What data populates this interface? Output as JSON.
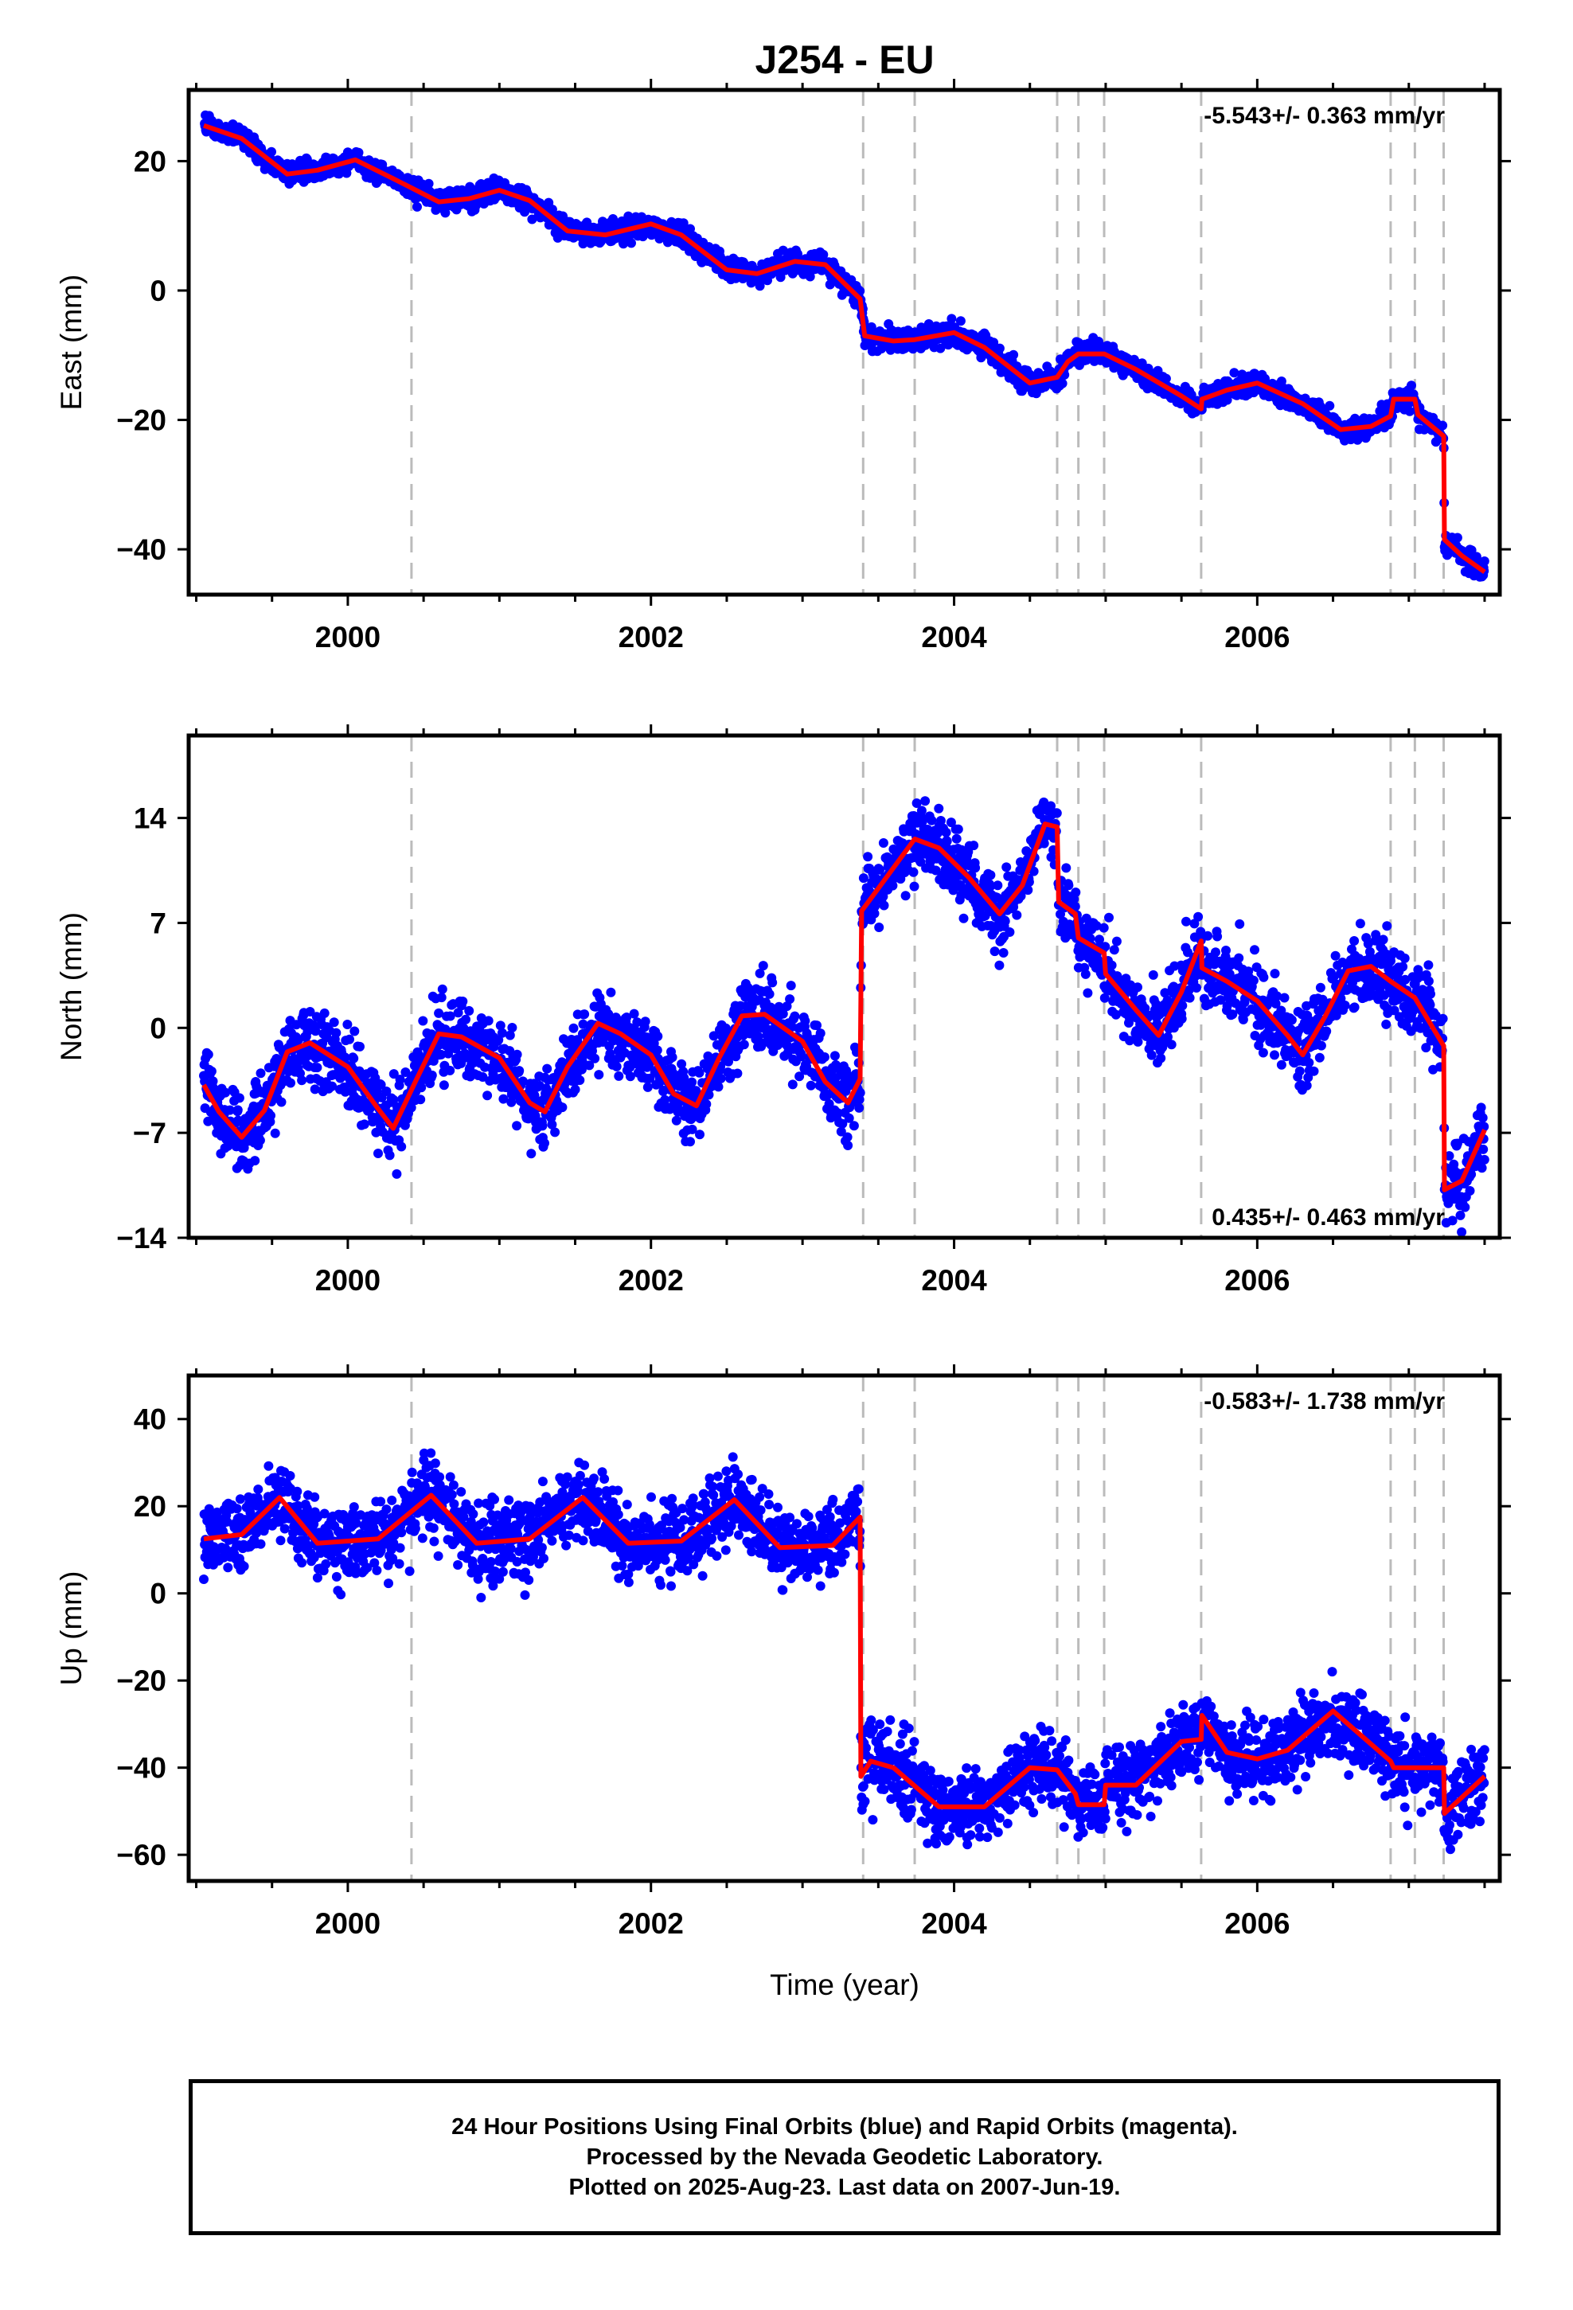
{
  "chart_data": {
    "type": "scatter",
    "title": "J254 - EU",
    "xlabel": "Time (year)",
    "xlim": [
      1998.95,
      2007.6
    ],
    "x_ticks": [
      2000,
      2002,
      2004,
      2006
    ],
    "x_tick_labels": [
      "2000",
      "2002",
      "2004",
      "2006"
    ],
    "event_lines": [
      2000.42,
      2003.4,
      2003.74,
      2004.68,
      2004.82,
      2004.99,
      2005.63,
      2006.88,
      2007.04,
      2007.23
    ],
    "data_colors": {
      "points": "#0000ff",
      "model": "#ff0000",
      "event_lines": "#bbbbbb"
    },
    "panels": [
      {
        "ylabel": "East (mm)",
        "ylim": [
          -47,
          31
        ],
        "y_ticks": [
          20,
          0,
          -20,
          -40
        ],
        "y_tick_labels": [
          "20",
          "0",
          "−20",
          "−40"
        ],
        "rate_label": "-5.543+/- 0.363 mm/yr",
        "rate_position": "top-right",
        "model": [
          [
            1999.05,
            25.5
          ],
          [
            1999.3,
            23.5
          ],
          [
            1999.6,
            18.0
          ],
          [
            1999.8,
            18.6
          ],
          [
            2000.05,
            20.2
          ],
          [
            2000.3,
            17.3
          ],
          [
            2000.6,
            13.7
          ],
          [
            2000.8,
            14.2
          ],
          [
            2001.0,
            15.5
          ],
          [
            2001.2,
            13.9
          ],
          [
            2001.45,
            9.2
          ],
          [
            2001.7,
            8.6
          ],
          [
            2002.0,
            10.3
          ],
          [
            2002.2,
            8.6
          ],
          [
            2002.5,
            3.2
          ],
          [
            2002.7,
            2.6
          ],
          [
            2002.95,
            4.5
          ],
          [
            2003.15,
            4.0
          ],
          [
            2003.38,
            -1.3
          ],
          [
            2003.41,
            -7.0
          ],
          [
            2003.6,
            -7.8
          ],
          [
            2003.74,
            -7.6
          ],
          [
            2004.0,
            -6.5
          ],
          [
            2004.2,
            -8.8
          ],
          [
            2004.5,
            -14.3
          ],
          [
            2004.68,
            -13.4
          ],
          [
            2004.75,
            -11.0
          ],
          [
            2004.82,
            -9.8
          ],
          [
            2004.99,
            -9.8
          ],
          [
            2005.2,
            -12.2
          ],
          [
            2005.5,
            -16.3
          ],
          [
            2005.63,
            -18.3
          ],
          [
            2005.635,
            -16.8
          ],
          [
            2005.8,
            -15.4
          ],
          [
            2006.0,
            -14.3
          ],
          [
            2006.3,
            -17.5
          ],
          [
            2006.55,
            -21.5
          ],
          [
            2006.75,
            -21.0
          ],
          [
            2006.88,
            -19.4
          ],
          [
            2006.9,
            -16.8
          ],
          [
            2007.04,
            -16.8
          ],
          [
            2007.06,
            -19.2
          ],
          [
            2007.23,
            -22.5
          ],
          [
            2007.235,
            -38.5
          ],
          [
            2007.35,
            -41.0
          ],
          [
            2007.5,
            -43.5
          ]
        ],
        "noise": 1.2
      },
      {
        "ylabel": "North (mm)",
        "ylim": [
          -14,
          19.5
        ],
        "y_ticks": [
          14,
          7,
          0,
          -7,
          -14
        ],
        "y_tick_labels": [
          "14",
          "7",
          "0",
          "−7",
          "−14"
        ],
        "rate_label": "0.435+/- 0.463 mm/yr",
        "rate_position": "bottom-right",
        "model": [
          [
            1999.05,
            -3.8
          ],
          [
            1999.15,
            -5.6
          ],
          [
            1999.3,
            -7.3
          ],
          [
            1999.45,
            -5.5
          ],
          [
            1999.6,
            -1.6
          ],
          [
            1999.75,
            -1.0
          ],
          [
            2000.0,
            -2.6
          ],
          [
            2000.2,
            -5.4
          ],
          [
            2000.3,
            -6.7
          ],
          [
            2000.45,
            -3.5
          ],
          [
            2000.6,
            -0.4
          ],
          [
            2000.75,
            -0.6
          ],
          [
            2001.0,
            -2.0
          ],
          [
            2001.2,
            -5.0
          ],
          [
            2001.3,
            -5.6
          ],
          [
            2001.45,
            -2.6
          ],
          [
            2001.65,
            0.3
          ],
          [
            2001.8,
            -0.4
          ],
          [
            2002.0,
            -1.8
          ],
          [
            2002.15,
            -4.4
          ],
          [
            2002.3,
            -5.2
          ],
          [
            2002.45,
            -2.0
          ],
          [
            2002.6,
            0.8
          ],
          [
            2002.75,
            0.9
          ],
          [
            2003.0,
            -0.9
          ],
          [
            2003.15,
            -3.6
          ],
          [
            2003.3,
            -5.0
          ],
          [
            2003.38,
            -3.4
          ],
          [
            2003.39,
            7.8
          ],
          [
            2003.5,
            9.3
          ],
          [
            2003.74,
            12.6
          ],
          [
            2003.9,
            12.0
          ],
          [
            2004.1,
            10.0
          ],
          [
            2004.3,
            7.6
          ],
          [
            2004.45,
            9.5
          ],
          [
            2004.6,
            13.6
          ],
          [
            2004.68,
            13.4
          ],
          [
            2004.69,
            8.4
          ],
          [
            2004.8,
            7.6
          ],
          [
            2004.82,
            6.0
          ],
          [
            2004.99,
            5.0
          ],
          [
            2005.0,
            3.6
          ],
          [
            2005.2,
            1.2
          ],
          [
            2005.35,
            -0.5
          ],
          [
            2005.5,
            2.4
          ],
          [
            2005.63,
            5.8
          ],
          [
            2005.635,
            4.0
          ],
          [
            2005.8,
            3.1
          ],
          [
            2006.0,
            1.8
          ],
          [
            2006.2,
            -0.5
          ],
          [
            2006.3,
            -1.8
          ],
          [
            2006.45,
            0.8
          ],
          [
            2006.6,
            3.8
          ],
          [
            2006.75,
            4.1
          ],
          [
            2006.88,
            3.1
          ],
          [
            2007.04,
            2.0
          ],
          [
            2007.23,
            -1.2
          ],
          [
            2007.235,
            -10.8
          ],
          [
            2007.35,
            -10.2
          ],
          [
            2007.5,
            -6.8
          ]
        ],
        "noise": 1.7
      },
      {
        "ylabel": "Up (mm)",
        "ylim": [
          -66,
          50
        ],
        "y_ticks": [
          40,
          20,
          0,
          -20,
          -40,
          -60
        ],
        "y_tick_labels": [
          "40",
          "20",
          "0",
          "−20",
          "−40",
          "−60"
        ],
        "rate_label": "-0.583+/- 1.738 mm/yr",
        "rate_position": "top-right",
        "model": [
          [
            1999.05,
            12.5
          ],
          [
            1999.3,
            13.5
          ],
          [
            1999.55,
            22.0
          ],
          [
            1999.8,
            11.5
          ],
          [
            2000.2,
            12.5
          ],
          [
            2000.55,
            22.5
          ],
          [
            2000.85,
            11.5
          ],
          [
            2001.2,
            12.5
          ],
          [
            2001.55,
            22.0
          ],
          [
            2001.85,
            11.5
          ],
          [
            2002.2,
            12.0
          ],
          [
            2002.55,
            21.5
          ],
          [
            2002.85,
            10.5
          ],
          [
            2003.2,
            11.0
          ],
          [
            2003.38,
            17.5
          ],
          [
            2003.385,
            -42.0
          ],
          [
            2003.45,
            -38.5
          ],
          [
            2003.6,
            -40.0
          ],
          [
            2003.9,
            -49.0
          ],
          [
            2004.2,
            -49.0
          ],
          [
            2004.5,
            -40.0
          ],
          [
            2004.68,
            -40.5
          ],
          [
            2004.8,
            -46.0
          ],
          [
            2004.82,
            -48.5
          ],
          [
            2004.99,
            -48.5
          ],
          [
            2005.0,
            -44.0
          ],
          [
            2005.2,
            -44.0
          ],
          [
            2005.5,
            -34.0
          ],
          [
            2005.63,
            -33.5
          ],
          [
            2005.635,
            -28.0
          ],
          [
            2005.8,
            -36.5
          ],
          [
            2006.0,
            -38.0
          ],
          [
            2006.2,
            -36.0
          ],
          [
            2006.5,
            -27.0
          ],
          [
            2006.88,
            -38.5
          ],
          [
            2006.9,
            -40.0
          ],
          [
            2007.23,
            -40.0
          ],
          [
            2007.235,
            -50.5
          ],
          [
            2007.5,
            -42.0
          ]
        ],
        "noise": 6.0
      }
    ],
    "footer_lines": [
      "24 Hour Positions Using Final Orbits (blue) and Rapid Orbits (magenta).",
      "Processed by the Nevada Geodetic Laboratory.",
      "Plotted on 2025-Aug-23. Last data on 2007-Jun-19."
    ]
  }
}
